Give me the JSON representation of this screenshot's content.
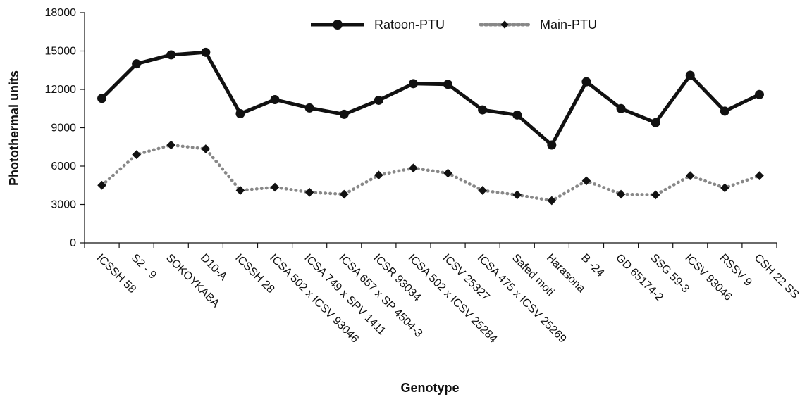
{
  "chart_data": {
    "type": "line",
    "xlabel": "Genotype",
    "ylabel": "Photothermal units",
    "ylim": [
      0,
      18000
    ],
    "yticks": [
      0,
      3000,
      6000,
      9000,
      12000,
      15000,
      18000
    ],
    "yticks_labels": [
      "0",
      "3000",
      "6000",
      "9000",
      "12000",
      "15000",
      "18000"
    ],
    "grid": false,
    "legend_position": "top-center",
    "categories": [
      "ICSSH 58",
      "S2 - 9",
      "SOKOYKABA",
      "D10-A",
      "ICSSH 28",
      "ICSA 502 x ICSV 93046",
      "ICSA 749 x SPV 1411",
      "ICSA 657 x SP 4504-3",
      "ICSR 93034",
      "ICSA 502 x ICSV 25284",
      "ICSV 25327",
      "ICSA 475 x ICSV 25269",
      "Safed moti",
      "Harasona",
      "B -24",
      "GD 65174-2",
      "SSG 59-3",
      "ICSV 93046",
      "RSSV 9",
      "CSH 22 SS"
    ],
    "series": [
      {
        "name": "Ratoon-PTU",
        "style": "solid",
        "marker": "circle",
        "color": "#111111",
        "values": [
          11300,
          14000,
          14700,
          14900,
          10100,
          11200,
          10550,
          10050,
          11150,
          12450,
          12400,
          10400,
          10000,
          7650,
          12600,
          10500,
          9400,
          13100,
          10300,
          11600
        ]
      },
      {
        "name": "Main-PTU",
        "style": "dotted",
        "marker": "diamond",
        "color": "#888888",
        "marker_color": "#111111",
        "values": [
          4500,
          6900,
          7650,
          7350,
          4100,
          4350,
          3950,
          3800,
          5300,
          5850,
          5450,
          4100,
          3750,
          3300,
          4850,
          3800,
          3750,
          5250,
          4300,
          5250
        ]
      }
    ]
  }
}
